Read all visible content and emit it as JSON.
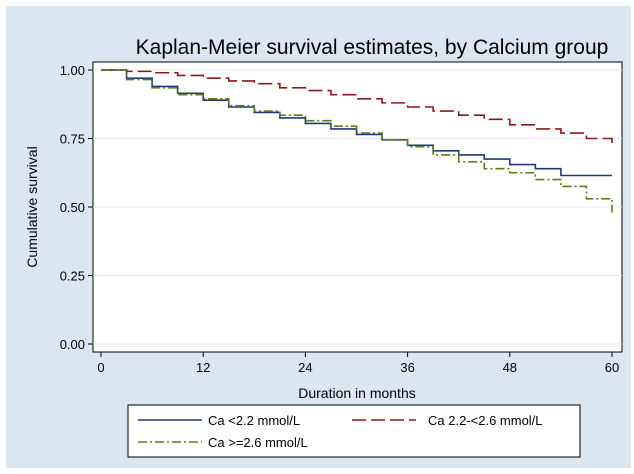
{
  "chart_data": {
    "type": "line",
    "step": true,
    "title": "Kaplan-Meier survival estimates, by Calcium group",
    "xlabel": "Duration in months",
    "ylabel": "Cumulative survival",
    "xlim": [
      0,
      60
    ],
    "ylim": [
      0,
      1
    ],
    "xticks": [
      "0",
      "12",
      "24",
      "36",
      "48",
      "60"
    ],
    "yticks": [
      "0.00",
      "0.25",
      "0.50",
      "0.75",
      "1.00"
    ],
    "grid": true,
    "legend_position": "bottom",
    "series": [
      {
        "name": "Ca <2.2 mmol/L",
        "color": "#1f3a7a",
        "dash": "solid",
        "x": [
          0,
          3,
          6,
          9,
          12,
          15,
          18,
          21,
          24,
          27,
          30,
          33,
          36,
          39,
          42,
          45,
          48,
          51,
          54,
          57,
          60
        ],
        "y": [
          1.0,
          0.97,
          0.94,
          0.915,
          0.89,
          0.865,
          0.845,
          0.825,
          0.805,
          0.785,
          0.765,
          0.745,
          0.725,
          0.705,
          0.69,
          0.675,
          0.655,
          0.64,
          0.615,
          0.615,
          0.615
        ]
      },
      {
        "name": "Ca 2.2-<2.6 mmol/L",
        "color": "#8b1a1a",
        "dash": "long-dash",
        "x": [
          0,
          3,
          6,
          9,
          12,
          15,
          18,
          21,
          24,
          27,
          30,
          33,
          36,
          39,
          42,
          45,
          48,
          51,
          54,
          57,
          60
        ],
        "y": [
          1.0,
          0.995,
          0.99,
          0.98,
          0.97,
          0.96,
          0.95,
          0.935,
          0.925,
          0.91,
          0.895,
          0.88,
          0.865,
          0.85,
          0.835,
          0.82,
          0.8,
          0.785,
          0.77,
          0.75,
          0.725
        ]
      },
      {
        "name": "Ca >=2.6 mmol/L",
        "color": "#5a7d1e",
        "dash": "dash-dot",
        "x": [
          0,
          3,
          6,
          9,
          12,
          15,
          18,
          21,
          24,
          27,
          30,
          33,
          36,
          39,
          42,
          45,
          48,
          51,
          54,
          57,
          60
        ],
        "y": [
          1.0,
          0.965,
          0.935,
          0.91,
          0.895,
          0.87,
          0.85,
          0.835,
          0.815,
          0.795,
          0.77,
          0.745,
          0.72,
          0.69,
          0.665,
          0.64,
          0.625,
          0.6,
          0.575,
          0.53,
          0.48
        ]
      }
    ]
  }
}
